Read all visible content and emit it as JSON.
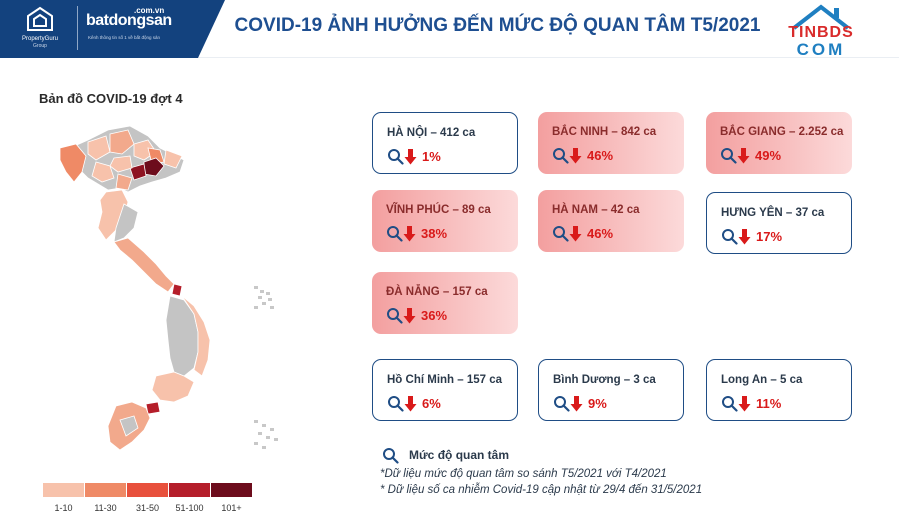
{
  "header": {
    "title": "COVID-19 ẢNH HƯỞNG ĐẾN MỨC ĐỘ QUAN TÂM T5/2021",
    "logo_propertyguru": "PropertyGuru",
    "logo_propertyguru_group": "Group",
    "logo_batdongsan_domain": ".com.vn",
    "logo_batdongsan": "batdongsan",
    "logo_batdongsan_tagline": "Kênh thông tin số 1 về bất động sản",
    "logo_tinbds_line1": "TINBDS",
    "logo_tinbds_line2": "COM"
  },
  "map": {
    "title": "Bản đồ COVID-19 đợt 4",
    "legend": [
      {
        "label": "1-10",
        "color": "#f7c2ab"
      },
      {
        "label": "11-30",
        "color": "#ef8a66"
      },
      {
        "label": "31-50",
        "color": "#e8503c"
      },
      {
        "label": "51-100",
        "color": "#b51e2a"
      },
      {
        "label": "101+",
        "color": "#6d0c1c"
      }
    ]
  },
  "cards": [
    {
      "name": "HÀ NỘI – 412 ca",
      "pct": "1%",
      "style": "low"
    },
    {
      "name": "BẮC NINH – 842 ca",
      "pct": "46%",
      "style": "high"
    },
    {
      "name": "BẮC GIANG – 2.252 ca",
      "pct": "49%",
      "style": "high"
    },
    {
      "name": "VĨNH PHÚC – 89 ca",
      "pct": "38%",
      "style": "high"
    },
    {
      "name": "HÀ NAM – 42 ca",
      "pct": "46%",
      "style": "high"
    },
    {
      "name": "HƯNG YÊN – 37 ca",
      "pct": "17%",
      "style": "low"
    },
    {
      "name": "ĐÀ NẴNG – 157 ca",
      "pct": "36%",
      "style": "high"
    },
    {
      "name": "Hồ Chí Minh – 157 ca",
      "pct": "6%",
      "style": "low"
    },
    {
      "name": "Bình Dương – 3 ca",
      "pct": "9%",
      "style": "low"
    },
    {
      "name": "Long An – 5 ca",
      "pct": "11%",
      "style": "low"
    }
  ],
  "footer": {
    "legend_text": "Mức độ quan tâm",
    "note1": "*Dữ liệu mức độ quan tâm so sánh T5/2021 với T4/2021",
    "note2": "* Dữ liệu số ca nhiễm Covid-19 cập nhật từ 29/4 đến 31/5/2021"
  },
  "colors": {
    "header_blue": "#13427e",
    "title_blue": "#1e4f91",
    "card_border": "#1f4d85",
    "decrease_red": "#d91a1a",
    "map_gray": "#c4c4c4"
  }
}
